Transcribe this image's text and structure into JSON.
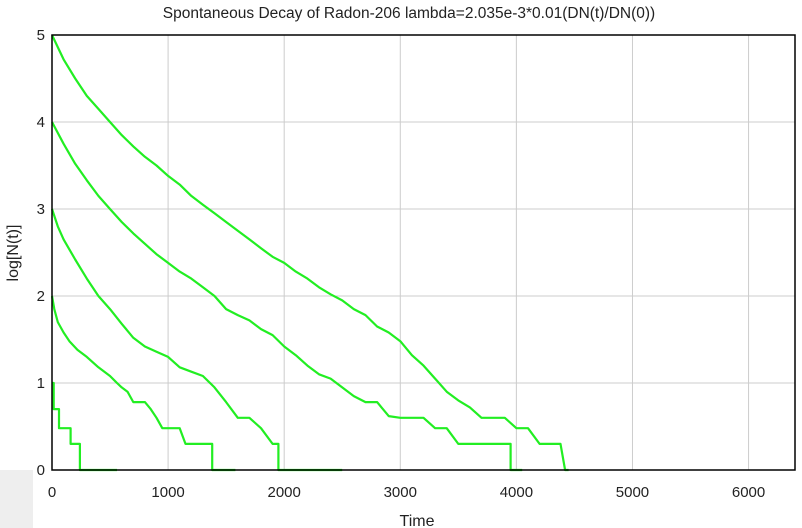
{
  "chart_data": {
    "type": "line",
    "title": "Spontaneous Decay of Radon-206 lambda=2.035e-3*0.01(DN(t)/DN(0))",
    "xlabel": "Time",
    "ylabel": "log[N(t)]",
    "xlim": [
      0,
      6400
    ],
    "ylim": [
      0,
      5
    ],
    "xticks": [
      "0",
      "1000",
      "2000",
      "3000",
      "4000",
      "5000",
      "6000"
    ],
    "yticks": [
      "0",
      "1",
      "2",
      "3",
      "4",
      "5"
    ],
    "grid": true,
    "line_color": "#22ee22",
    "series": [
      {
        "x": [
          0,
          15,
          15,
          60,
          60,
          160,
          160,
          240,
          240,
          260,
          260,
          560
        ],
        "y": [
          1.0,
          1.0,
          0.7,
          0.7,
          0.48,
          0.48,
          0.3,
          0.3,
          0.0,
          0.0,
          0.0,
          0.0
        ]
      },
      {
        "x": [
          0,
          20,
          50,
          100,
          150,
          220,
          300,
          400,
          500,
          560,
          600,
          650,
          700,
          800,
          850,
          900,
          950,
          1000,
          1050,
          1100,
          1150,
          1200,
          1250,
          1300,
          1380,
          1380,
          1580
        ],
        "y": [
          2.0,
          1.85,
          1.7,
          1.58,
          1.48,
          1.38,
          1.3,
          1.18,
          1.08,
          1.0,
          0.95,
          0.9,
          0.78,
          0.78,
          0.7,
          0.6,
          0.48,
          0.48,
          0.48,
          0.48,
          0.3,
          0.3,
          0.3,
          0.3,
          0.3,
          0.0,
          0.0
        ]
      },
      {
        "x": [
          0,
          50,
          100,
          200,
          300,
          400,
          500,
          600,
          700,
          800,
          900,
          1000,
          1100,
          1200,
          1300,
          1400,
          1500,
          1600,
          1700,
          1800,
          1900,
          1950,
          1950,
          2500
        ],
        "y": [
          3.0,
          2.8,
          2.65,
          2.42,
          2.2,
          2.0,
          1.85,
          1.68,
          1.52,
          1.42,
          1.36,
          1.3,
          1.18,
          1.13,
          1.08,
          0.95,
          0.78,
          0.6,
          0.6,
          0.48,
          0.3,
          0.3,
          0.0,
          0.0
        ]
      },
      {
        "x": [
          0,
          100,
          200,
          300,
          400,
          500,
          600,
          700,
          800,
          900,
          1000,
          1100,
          1200,
          1300,
          1400,
          1500,
          1600,
          1700,
          1800,
          1900,
          2000,
          2100,
          2200,
          2300,
          2400,
          2500,
          2600,
          2700,
          2800,
          2900,
          3000,
          3100,
          3200,
          3300,
          3400,
          3500,
          3600,
          3700,
          3800,
          3900,
          3950,
          3950,
          4050
        ],
        "y": [
          4.0,
          3.75,
          3.52,
          3.33,
          3.15,
          3.0,
          2.85,
          2.72,
          2.6,
          2.48,
          2.38,
          2.28,
          2.2,
          2.1,
          2.0,
          1.85,
          1.78,
          1.72,
          1.62,
          1.55,
          1.42,
          1.32,
          1.2,
          1.1,
          1.05,
          0.95,
          0.85,
          0.78,
          0.78,
          0.62,
          0.6,
          0.6,
          0.6,
          0.48,
          0.48,
          0.3,
          0.3,
          0.3,
          0.3,
          0.3,
          0.3,
          0.0,
          0.0
        ]
      },
      {
        "x": [
          0,
          100,
          200,
          300,
          400,
          500,
          600,
          700,
          800,
          900,
          1000,
          1100,
          1200,
          1300,
          1400,
          1500,
          1600,
          1700,
          1800,
          1900,
          2000,
          2100,
          2200,
          2300,
          2400,
          2500,
          2600,
          2700,
          2800,
          2900,
          3000,
          3100,
          3200,
          3300,
          3400,
          3500,
          3600,
          3700,
          3800,
          3900,
          4000,
          4100,
          4200,
          4300,
          4350,
          4380,
          4420,
          4450
        ],
        "y": [
          5.0,
          4.72,
          4.5,
          4.3,
          4.15,
          4.0,
          3.85,
          3.72,
          3.6,
          3.5,
          3.38,
          3.28,
          3.15,
          3.05,
          2.95,
          2.85,
          2.75,
          2.65,
          2.55,
          2.45,
          2.38,
          2.28,
          2.2,
          2.1,
          2.02,
          1.95,
          1.85,
          1.78,
          1.65,
          1.58,
          1.48,
          1.32,
          1.2,
          1.05,
          0.9,
          0.8,
          0.72,
          0.6,
          0.6,
          0.6,
          0.48,
          0.48,
          0.3,
          0.3,
          0.3,
          0.3,
          0.0,
          0.0
        ]
      }
    ]
  }
}
